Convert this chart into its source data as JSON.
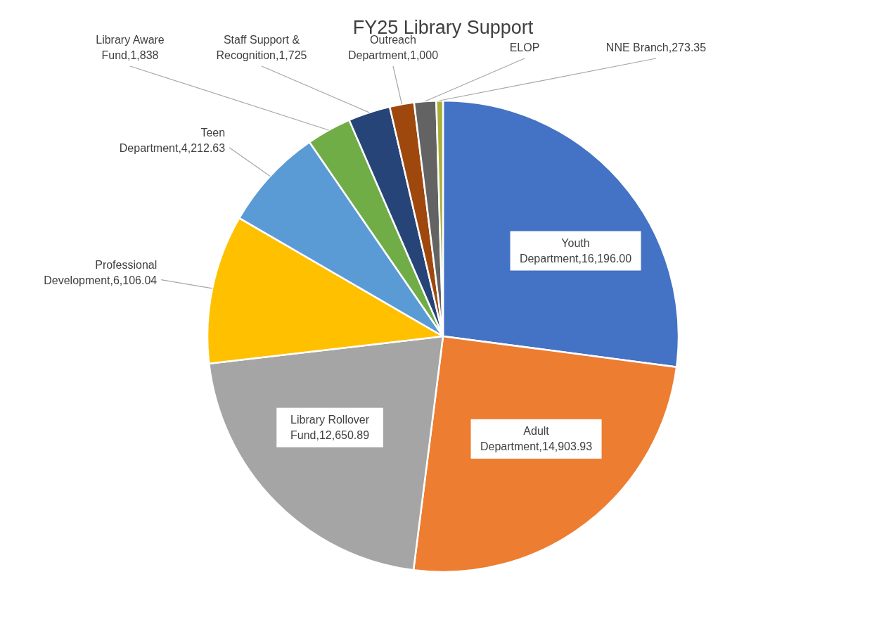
{
  "chart_data": {
    "type": "pie",
    "title": "FY25 Library Support",
    "categories": [
      "Youth Department",
      "Adult Department",
      "Library Rollover Fund",
      "Professional Development",
      "Teen Department",
      "Library Aware Fund",
      "Staff Support & Recognition",
      "Outreach Department",
      "ELOP",
      "NNE Branch"
    ],
    "values": [
      16196.0,
      14903.93,
      12650.89,
      6106.04,
      4212.63,
      1838,
      1725,
      1000,
      900,
      273.35
    ],
    "value_labels": [
      "16,196.00",
      "14,903.93",
      "12,650.89",
      "6,106.04",
      "4,212.63",
      "1,838",
      "1,725",
      "1,000",
      null,
      "273.35"
    ],
    "colors": [
      "#4472c4",
      "#ed7d31",
      "#a5a5a5",
      "#ffc000",
      "#5b9bd5",
      "#70ad47",
      "#264478",
      "#9e480e",
      "#636363",
      "#a9b03a"
    ]
  }
}
